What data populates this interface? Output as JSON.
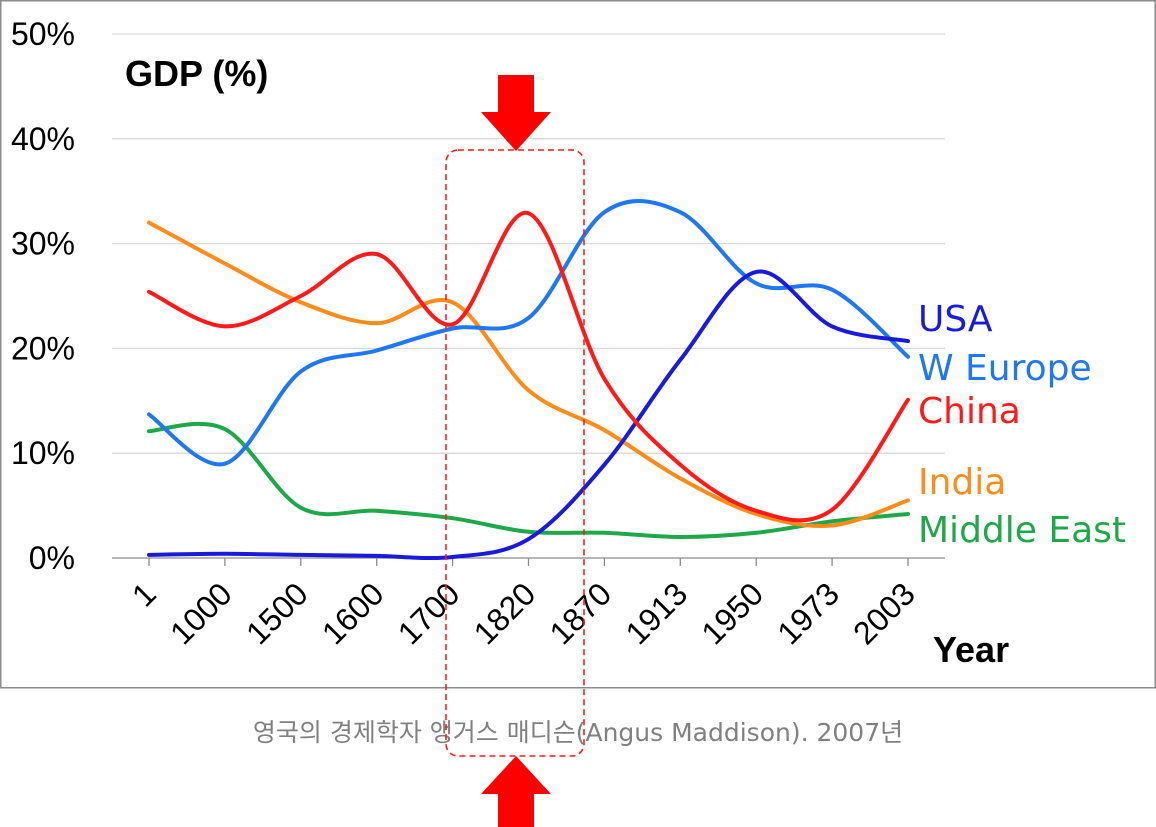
{
  "chart_data": {
    "type": "line",
    "title": "GDP (%)",
    "xlabel": "Year",
    "ylabel": "",
    "ylim": [
      0,
      50
    ],
    "yticks": [
      "0%",
      "10%",
      "20%",
      "30%",
      "40%",
      "50%"
    ],
    "categories": [
      "1",
      "1000",
      "1500",
      "1600",
      "1700",
      "1820",
      "1870",
      "1913",
      "1950",
      "1973",
      "2003"
    ],
    "grid": true,
    "legend_position": "right",
    "series": [
      {
        "name": "USA",
        "color": "#1a1adb",
        "values": [
          0.3,
          0.4,
          0.3,
          0.2,
          0.1,
          1.8,
          8.9,
          18.9,
          27.3,
          22.1,
          20.7
        ]
      },
      {
        "name": "W Europe",
        "color": "#1f77f2",
        "values": [
          13.7,
          9.0,
          17.8,
          19.8,
          21.9,
          22.9,
          33.0,
          33.0,
          26.2,
          25.6,
          19.2
        ]
      },
      {
        "name": "China",
        "color": "#ff1a1a",
        "values": [
          25.4,
          22.1,
          25.0,
          29.0,
          22.3,
          32.9,
          17.1,
          8.9,
          4.5,
          4.6,
          15.1
        ]
      },
      {
        "name": "India",
        "color": "#ff8c1a",
        "values": [
          32.0,
          28.1,
          24.4,
          22.4,
          24.4,
          16.0,
          12.2,
          7.6,
          4.2,
          3.1,
          5.5
        ]
      },
      {
        "name": "Middle East",
        "color": "#1fa84a",
        "values": [
          12.1,
          12.3,
          4.8,
          4.5,
          3.8,
          2.5,
          2.4,
          2.0,
          2.4,
          3.5,
          4.2
        ]
      }
    ],
    "caption": "영국의 경제학자 앵거스 매디슨(Angus Maddison). 2007년",
    "highlight": {
      "category": "1820",
      "color": "#ff0000"
    }
  }
}
